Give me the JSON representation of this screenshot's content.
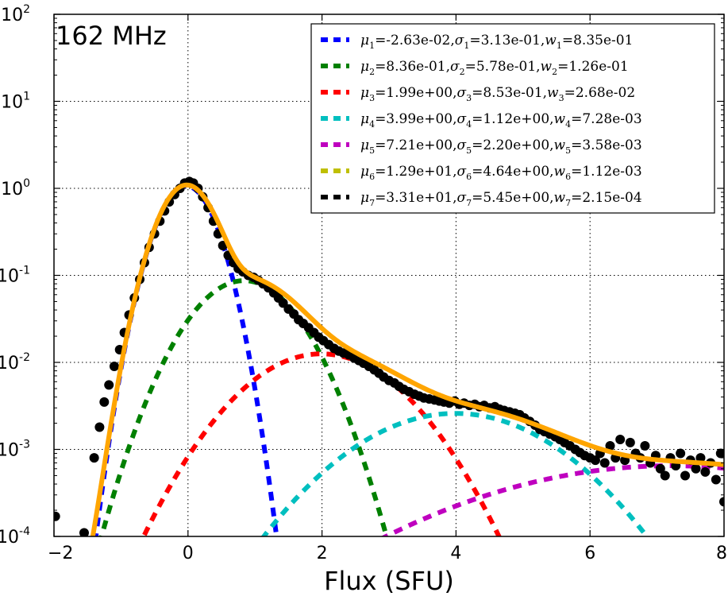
{
  "chart_data": {
    "type": "line",
    "annotation": "162 MHz",
    "xlabel": "Flux (SFU)",
    "ylabel": "",
    "xlim": [
      -2,
      8
    ],
    "ylim": [
      0.0001,
      100
    ],
    "yscale": "log",
    "grid": true,
    "legend_position": "top-right",
    "x_ticks": [
      -2,
      0,
      2,
      4,
      6,
      8
    ],
    "x_tick_labels": [
      "−2",
      "0",
      "2",
      "4",
      "6",
      "8"
    ],
    "y_ticks": [
      {
        "value": 0.0001,
        "base": "10",
        "exp": "-4"
      },
      {
        "value": 0.001,
        "base": "10",
        "exp": "-3"
      },
      {
        "value": 0.01,
        "base": "10",
        "exp": "-2"
      },
      {
        "value": 0.1,
        "base": "10",
        "exp": "-1"
      },
      {
        "value": 1,
        "base": "10",
        "exp": "0"
      },
      {
        "value": 10,
        "base": "10",
        "exp": "1"
      },
      {
        "value": 100,
        "base": "10",
        "exp": "2"
      }
    ],
    "components": [
      {
        "index": "1",
        "mu": "-2.63e-02",
        "sigma": "3.13e-01",
        "w": "8.35e-01",
        "color": "#0000ff"
      },
      {
        "index": "2",
        "mu": "8.36e-01",
        "sigma": "5.78e-01",
        "w": "1.26e-01",
        "color": "#008000"
      },
      {
        "index": "3",
        "mu": "1.99e+00",
        "sigma": "8.53e-01",
        "w": "2.68e-02",
        "color": "#ff0000"
      },
      {
        "index": "4",
        "mu": "3.99e+00",
        "sigma": "1.12e+00",
        "w": "7.28e-03",
        "color": "#00bfbf"
      },
      {
        "index": "5",
        "mu": "7.21e+00",
        "sigma": "2.20e+00",
        "w": "3.58e-03",
        "color": "#bf00bf"
      },
      {
        "index": "6",
        "mu": "1.29e+01",
        "sigma": "4.64e+00",
        "w": "1.12e-03",
        "color": "#bfbf00"
      },
      {
        "index": "7",
        "mu": "3.31e+01",
        "sigma": "5.45e+00",
        "w": "2.15e-04",
        "color": "#000000"
      }
    ],
    "sum_color": "#ffa500",
    "data_points": [
      [
        -1.98,
        0.00017
      ],
      [
        -1.55,
        0.00011
      ],
      [
        -1.4,
        0.0008
      ],
      [
        -1.32,
        0.0018
      ],
      [
        -1.25,
        0.0035
      ],
      [
        -1.18,
        0.0055
      ],
      [
        -1.1,
        0.009
      ],
      [
        -1.02,
        0.014
      ],
      [
        -0.95,
        0.022
      ],
      [
        -0.88,
        0.035
      ],
      [
        -0.8,
        0.055
      ],
      [
        -0.72,
        0.09
      ],
      [
        -0.65,
        0.14
      ],
      [
        -0.58,
        0.21
      ],
      [
        -0.5,
        0.3
      ],
      [
        -0.42,
        0.42
      ],
      [
        -0.35,
        0.55
      ],
      [
        -0.28,
        0.7
      ],
      [
        -0.2,
        0.85
      ],
      [
        -0.12,
        1.0
      ],
      [
        -0.05,
        1.15
      ],
      [
        0.02,
        1.2
      ],
      [
        0.08,
        1.15
      ],
      [
        0.15,
        1.0
      ],
      [
        0.22,
        0.8
      ],
      [
        0.3,
        0.6
      ],
      [
        0.38,
        0.42
      ],
      [
        0.45,
        0.3
      ],
      [
        0.52,
        0.22
      ],
      [
        0.6,
        0.17
      ],
      [
        0.68,
        0.14
      ],
      [
        0.75,
        0.12
      ],
      [
        0.82,
        0.11
      ],
      [
        0.9,
        0.1
      ],
      [
        0.98,
        0.095
      ],
      [
        1.05,
        0.088
      ],
      [
        1.12,
        0.08
      ],
      [
        1.2,
        0.072
      ],
      [
        1.28,
        0.063
      ],
      [
        1.35,
        0.055
      ],
      [
        1.42,
        0.048
      ],
      [
        1.5,
        0.041
      ],
      [
        1.58,
        0.036
      ],
      [
        1.65,
        0.031
      ],
      [
        1.72,
        0.028
      ],
      [
        1.8,
        0.025
      ],
      [
        1.88,
        0.022
      ],
      [
        1.95,
        0.0195
      ],
      [
        2.02,
        0.0178
      ],
      [
        2.1,
        0.016
      ],
      [
        2.18,
        0.0145
      ],
      [
        2.25,
        0.0135
      ],
      [
        2.32,
        0.0128
      ],
      [
        2.4,
        0.0122
      ],
      [
        2.48,
        0.0112
      ],
      [
        2.55,
        0.0105
      ],
      [
        2.62,
        0.0098
      ],
      [
        2.7,
        0.009
      ],
      [
        2.78,
        0.0082
      ],
      [
        2.85,
        0.0075
      ],
      [
        2.92,
        0.0068
      ],
      [
        3.0,
        0.0062
      ],
      [
        3.08,
        0.0058
      ],
      [
        3.15,
        0.0053
      ],
      [
        3.22,
        0.0049
      ],
      [
        3.3,
        0.0046
      ],
      [
        3.38,
        0.0043
      ],
      [
        3.45,
        0.0041
      ],
      [
        3.52,
        0.0039
      ],
      [
        3.6,
        0.0038
      ],
      [
        3.68,
        0.0037
      ],
      [
        3.75,
        0.0036
      ],
      [
        3.82,
        0.0035
      ],
      [
        3.9,
        0.0034
      ],
      [
        3.98,
        0.0036
      ],
      [
        4.05,
        0.0033
      ],
      [
        4.12,
        0.0034
      ],
      [
        4.2,
        0.0032
      ],
      [
        4.28,
        0.0033
      ],
      [
        4.35,
        0.0031
      ],
      [
        4.42,
        0.0032
      ],
      [
        4.5,
        0.003
      ],
      [
        4.58,
        0.0031
      ],
      [
        4.65,
        0.0029
      ],
      [
        4.72,
        0.0028
      ],
      [
        4.8,
        0.0027
      ],
      [
        4.88,
        0.0026
      ],
      [
        4.95,
        0.0025
      ],
      [
        5.02,
        0.0023
      ],
      [
        5.1,
        0.0021
      ],
      [
        5.18,
        0.0019
      ],
      [
        5.25,
        0.0017
      ],
      [
        5.32,
        0.0016
      ],
      [
        5.4,
        0.0015
      ],
      [
        5.48,
        0.0014
      ],
      [
        5.55,
        0.0013
      ],
      [
        5.62,
        0.0012
      ],
      [
        5.7,
        0.0011
      ],
      [
        5.78,
        0.001
      ],
      [
        5.85,
        0.00092
      ],
      [
        5.92,
        0.00085
      ],
      [
        6.0,
        0.0008
      ],
      [
        6.08,
        0.00075
      ],
      [
        6.15,
        0.0009
      ],
      [
        6.22,
        0.0007
      ],
      [
        6.3,
        0.0011
      ],
      [
        6.38,
        0.0008
      ],
      [
        6.45,
        0.0013
      ],
      [
        6.52,
        0.00075
      ],
      [
        6.6,
        0.0012
      ],
      [
        6.68,
        0.0009
      ],
      [
        6.75,
        0.0008
      ],
      [
        6.82,
        0.0011
      ],
      [
        6.9,
        0.0007
      ],
      [
        6.98,
        0.00085
      ],
      [
        7.05,
        0.0006
      ],
      [
        7.12,
        0.0005
      ],
      [
        7.2,
        0.0008
      ],
      [
        7.28,
        0.00065
      ],
      [
        7.35,
        0.0009
      ],
      [
        7.42,
        0.0005
      ],
      [
        7.5,
        0.00075
      ],
      [
        7.58,
        0.0006
      ],
      [
        7.65,
        0.0008
      ],
      [
        7.72,
        0.00055
      ],
      [
        7.8,
        0.0007
      ],
      [
        7.88,
        0.00045
      ],
      [
        7.95,
        0.0009
      ],
      [
        8.0,
        0.00025
      ]
    ]
  }
}
